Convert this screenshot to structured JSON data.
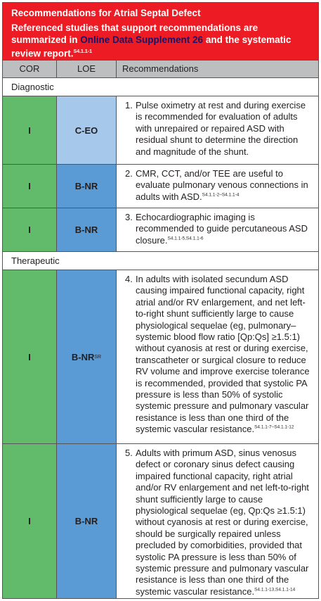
{
  "header": {
    "title": "Recommendations for Atrial Septal Defect",
    "subtitle_pre": "Referenced studies that support recommendations are summarized in ",
    "subtitle_link": "Online Data Supplement 26",
    "subtitle_post": " and the systematic review report.",
    "subtitle_ref": "S4.1.1-1"
  },
  "columns": {
    "cor": "COR",
    "loe": "LOE",
    "rec": "Recommendations"
  },
  "sections": {
    "diagnostic": "Diagnostic",
    "therapeutic": "Therapeutic"
  },
  "rows": [
    {
      "cor": "I",
      "loe": "C-EO",
      "loe_sup": "",
      "num": "1.",
      "text": "Pulse oximetry at rest and during exercise is recommended for evaluation of adults with unrepaired or repaired ASD with residual shunt to determine the direction and magnitude of the shunt.",
      "ref": ""
    },
    {
      "cor": "I",
      "loe": "B-NR",
      "loe_sup": "",
      "num": "2.",
      "text": "CMR, CCT, and/or TEE are useful to evaluate pulmonary venous connections in adults with ASD.",
      "ref": "S4.1.1-2–S4.1.1-4"
    },
    {
      "cor": "I",
      "loe": "B-NR",
      "loe_sup": "",
      "num": "3.",
      "text": "Echocardiographic imaging is recommended to guide percutaneous ASD closure.",
      "ref": "S4.1.1-5,S4.1.1-6"
    },
    {
      "cor": "I",
      "loe": "B-NR",
      "loe_sup": "SR",
      "num": "4.",
      "text": "In adults with isolated secundum ASD causing impaired functional capacity, right atrial and/or RV enlargement, and net left-to-right shunt sufficiently large to cause physiological sequelae (eg, pulmonary–systemic blood flow ratio [Qp:Qs] ≥1.5:1) without cyanosis at rest or during exercise, transcatheter or surgical closure to reduce RV volume and improve exercise tolerance is recommended, provided that systolic PA pressure is less than 50% of systolic systemic pressure and pulmonary vascular resistance is less than one third of the systemic vascular resistance.",
      "ref": "S4.1.1-7–S4.1.1-12"
    },
    {
      "cor": "I",
      "loe": "B-NR",
      "loe_sup": "",
      "num": "5.",
      "text": "Adults with primum ASD, sinus venosus defect or coronary sinus defect causing impaired functional capacity, right atrial and/or RV enlargement and net left-to-right shunt sufficiently large to cause physiological sequelae (eg, Qp:Qs ≥1.5:1) without cyanosis at rest or during exercise, should be surgically repaired unless precluded by comorbidities, provided that systolic PA pressure is less than 50% of systemic pressure and pulmonary vascular resistance is less than one third of the systemic vascular resistance.",
      "ref": "S4.1.1-13,S4.1.1-14"
    }
  ]
}
